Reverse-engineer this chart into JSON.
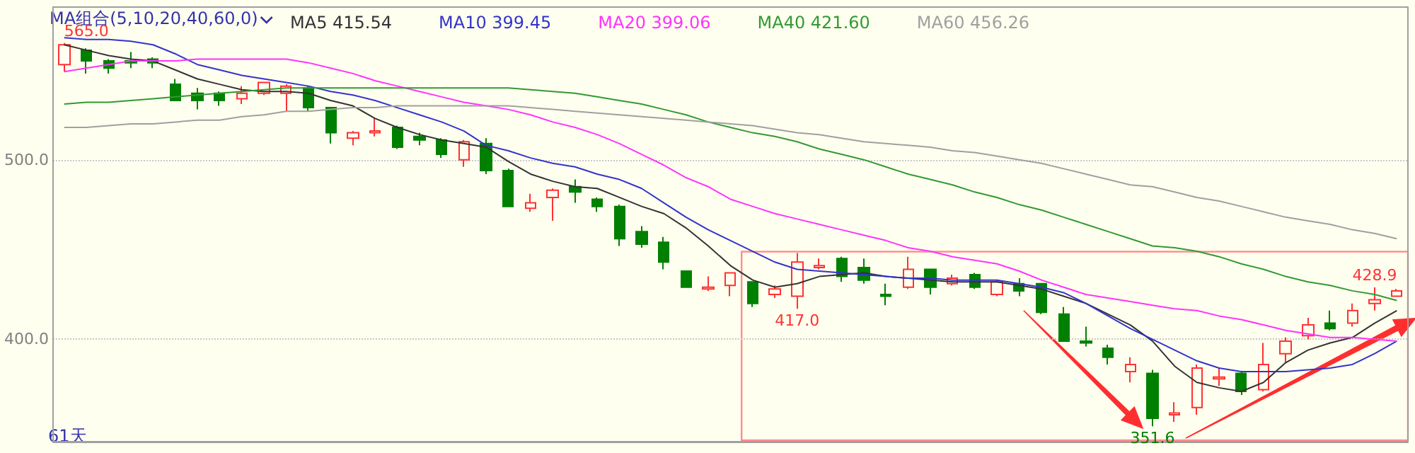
{
  "chart_data": {
    "type": "candlestick",
    "categories": [
      null,
      null,
      null,
      null,
      null,
      null,
      null,
      null,
      null,
      null,
      null,
      null,
      null,
      null,
      null,
      null,
      null,
      null,
      null,
      null,
      null,
      null,
      null,
      null,
      null,
      null,
      null,
      null,
      null,
      null,
      null,
      null,
      null,
      null,
      null,
      null,
      null,
      null,
      null,
      null,
      null,
      null,
      null,
      null,
      null,
      null,
      null,
      null,
      null,
      null,
      null,
      null,
      null,
      null,
      null,
      null,
      null,
      null,
      null,
      null,
      null
    ],
    "ohlc": [
      [
        553,
        565,
        549,
        564
      ],
      [
        561,
        562,
        548,
        555
      ],
      [
        555,
        556,
        548,
        551
      ],
      [
        555,
        560,
        551,
        554
      ],
      [
        556,
        557,
        551,
        554
      ],
      [
        542,
        545,
        533,
        533
      ],
      [
        537,
        540,
        528,
        533
      ],
      [
        537,
        538,
        530,
        533
      ],
      [
        534,
        541,
        531,
        537
      ],
      [
        537,
        543,
        536,
        543
      ],
      [
        537,
        542,
        527,
        541
      ],
      [
        540,
        541,
        527,
        529
      ],
      [
        529,
        529,
        509,
        515
      ],
      [
        512,
        516,
        508,
        515
      ],
      [
        515,
        523,
        513,
        516
      ],
      [
        518,
        519,
        506,
        507
      ],
      [
        513,
        515,
        508,
        511
      ],
      [
        511,
        512,
        501,
        503
      ],
      [
        500,
        511,
        496,
        510
      ],
      [
        509,
        512,
        492,
        494
      ],
      [
        494,
        495,
        474,
        474
      ],
      [
        473,
        481,
        471,
        476
      ],
      [
        479,
        484,
        466,
        483
      ],
      [
        485,
        489,
        476,
        482
      ],
      [
        478,
        479,
        471,
        474
      ],
      [
        474,
        475,
        452,
        456
      ],
      [
        460,
        463,
        451,
        453
      ],
      [
        454,
        457,
        439,
        443
      ],
      [
        438,
        438,
        429,
        429
      ],
      [
        428,
        435,
        427,
        429
      ],
      [
        430,
        437,
        424,
        437
      ],
      [
        432,
        432,
        418,
        420
      ],
      [
        425,
        430,
        423,
        428
      ],
      [
        424,
        448,
        417,
        443
      ],
      [
        440,
        445,
        439,
        441
      ],
      [
        445,
        446,
        432,
        435
      ],
      [
        440,
        445,
        431,
        433
      ],
      [
        425,
        431,
        419,
        424
      ],
      [
        429,
        446,
        428,
        439
      ],
      [
        439,
        439,
        425,
        429
      ],
      [
        431,
        436,
        430,
        434
      ],
      [
        436,
        437,
        428,
        429
      ],
      [
        425,
        433,
        424,
        432
      ],
      [
        431,
        434,
        424,
        427
      ],
      [
        431,
        431,
        414,
        415
      ],
      [
        414,
        418,
        399,
        399
      ],
      [
        399,
        407,
        396,
        398
      ],
      [
        395,
        397,
        386,
        390
      ],
      [
        382,
        390,
        376,
        386
      ],
      [
        381,
        383,
        351.6,
        356
      ],
      [
        358,
        365,
        354,
        359
      ],
      [
        362,
        386,
        358,
        384
      ],
      [
        378,
        384,
        374,
        379
      ],
      [
        381,
        382,
        369,
        371
      ],
      [
        372,
        398,
        371,
        386
      ],
      [
        392,
        401,
        387,
        399
      ],
      [
        402,
        412,
        400,
        408
      ],
      [
        409,
        416,
        405,
        406
      ],
      [
        409,
        420,
        407,
        416
      ],
      [
        420,
        428.9,
        416,
        422
      ],
      [
        424,
        428,
        424,
        427
      ]
    ],
    "colors": [
      "#ff3232",
      "#008000",
      "#008000",
      "#008000",
      "#008000",
      "#008000",
      "#008000",
      "#008000",
      "#ff3232",
      "#ff3232",
      "#ff3232",
      "#008000",
      "#008000",
      "#ff3232",
      "#ff3232",
      "#008000",
      "#008000",
      "#008000",
      "#ff3232",
      "#008000",
      "#008000",
      "#ff3232",
      "#ff3232",
      "#008000",
      "#008000",
      "#008000",
      "#008000",
      "#008000",
      "#008000",
      "#ff3232",
      "#ff3232",
      "#008000",
      "#ff3232",
      "#ff3232",
      "#ff3232",
      "#008000",
      "#008000",
      "#008000",
      "#ff3232",
      "#008000",
      "#ff3232",
      "#008000",
      "#ff3232",
      "#008000",
      "#008000",
      "#008000",
      "#008000",
      "#008000",
      "#ff3232",
      "#008000",
      "#ff3232",
      "#ff3232",
      "#ff3232",
      "#008000",
      "#ff3232",
      "#ff3232",
      "#ff3232",
      "#008000",
      "#ff3232",
      "#ff3232",
      "#ff3232"
    ],
    "series": [
      {
        "type": "line",
        "name": "MA5 415.54",
        "color": "#333333",
        "values": [
          564,
          561,
          558,
          556,
          555,
          550,
          545,
          542,
          539,
          538,
          538,
          537,
          533,
          530,
          523,
          518,
          514,
          511,
          509,
          507,
          499,
          492,
          488,
          485,
          484,
          479,
          474,
          470,
          462,
          452,
          441,
          433,
          429,
          431,
          435,
          436,
          437,
          435,
          434,
          433,
          432,
          432,
          432,
          430,
          428,
          424,
          420,
          414,
          408,
          399,
          385,
          376,
          373,
          371,
          376,
          387,
          394,
          398,
          401,
          409,
          416
        ]
      },
      {
        "type": "line",
        "name": "MA10 399.45",
        "color": "#3333cc",
        "values": [
          568,
          567,
          567,
          566,
          564,
          559,
          553,
          550,
          547,
          545,
          543,
          541,
          538,
          536,
          533,
          529,
          525,
          521,
          516,
          508,
          505,
          501,
          498,
          496,
          492,
          489,
          484,
          476,
          468,
          461,
          455,
          449,
          443,
          439,
          438,
          437,
          436,
          435,
          434,
          434,
          433,
          433,
          433,
          431,
          429,
          426,
          420,
          413,
          406,
          400,
          394,
          388,
          384,
          382,
          382,
          382,
          383,
          384,
          386,
          392,
          399
        ]
      },
      {
        "type": "line",
        "name": "MA20 399.06",
        "color": "#ff33ff",
        "values": [
          549,
          551,
          553,
          555,
          555,
          555,
          556,
          556,
          556,
          556,
          556,
          554,
          551,
          548,
          544,
          541,
          538,
          535,
          532,
          530,
          528,
          525,
          521,
          518,
          514,
          509,
          503,
          497,
          490,
          485,
          478,
          474,
          470,
          467,
          464,
          461,
          458,
          455,
          451,
          449,
          446,
          444,
          442,
          438,
          433,
          429,
          425,
          423,
          421,
          419,
          417,
          416,
          413,
          411,
          408,
          405,
          403,
          401,
          401,
          null,
          399
        ]
      },
      {
        "type": "line",
        "name": "MA40 421.60",
        "color": "#339933",
        "values": [
          531,
          532,
          532,
          533,
          534,
          535,
          536,
          537,
          538,
          539,
          540,
          540,
          540,
          540,
          540,
          540,
          540,
          540,
          540,
          540,
          540,
          539,
          538,
          537,
          535,
          533,
          531,
          528,
          525,
          521,
          518,
          515,
          513,
          510,
          506,
          503,
          500,
          496,
          492,
          489,
          486,
          482,
          479,
          475,
          472,
          468,
          464,
          460,
          456,
          452,
          451,
          449,
          446,
          442,
          439,
          435,
          432,
          430,
          427,
          425,
          421.6
        ]
      },
      {
        "type": "line",
        "name": "MA60 456.26",
        "color": "#a0a0a0",
        "values": [
          518,
          518,
          519,
          520,
          520,
          521,
          522,
          522,
          524,
          525,
          527,
          527,
          528,
          529,
          529,
          530,
          530,
          530,
          530,
          530,
          530,
          529,
          528,
          527,
          526,
          525,
          524,
          523,
          522,
          521,
          520,
          519,
          517,
          515,
          514,
          512,
          510,
          509,
          508,
          507,
          505,
          504,
          502,
          500,
          498,
          495,
          492,
          489,
          486,
          485,
          482,
          479,
          477,
          474,
          471,
          468,
          466,
          464,
          461,
          459,
          456
        ]
      }
    ],
    "ylim": [
      343,
      585
    ],
    "yticks": [
      {
        "value": 400,
        "label": "400.0"
      },
      {
        "value": 500,
        "label": "500.0"
      }
    ],
    "grid": "y",
    "legend": "top left",
    "marker": "none",
    "line_style": "solid",
    "annotations": [
      "MA组合(5,10,20,40,60,0)",
      "61天",
      {
        "text": "565.0",
        "y": 565
      },
      {
        "text": "417.0",
        "y": 417
      },
      {
        "text": "351.6",
        "y": 351.6
      },
      {
        "text": "428.9",
        "y": 428.9
      }
    ]
  }
}
